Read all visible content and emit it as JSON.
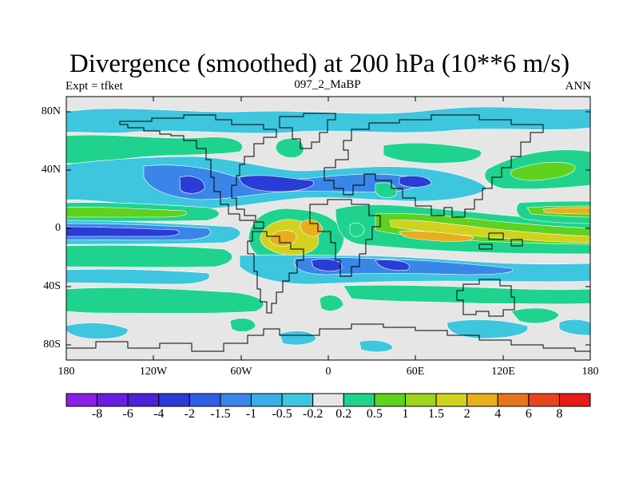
{
  "title": "Divergence (smoothed) at 200 hPa (10**6 m/s)",
  "subtitle_left": "Expt = tfket",
  "subtitle_center": "097_2_MaBP",
  "subtitle_right": "ANN",
  "lat_ticks": [
    "80N",
    "40N",
    "0",
    "40S",
    "80S"
  ],
  "lon_ticks": [
    "180",
    "120W",
    "60W",
    "0",
    "60E",
    "120E",
    "180"
  ],
  "colorbar": {
    "labels": [
      "-8",
      "-6",
      "-4",
      "-2",
      "-1.5",
      "-1",
      "-0.5",
      "-0.2",
      "0.2",
      "0.5",
      "1",
      "1.5",
      "2",
      "4",
      "6",
      "8"
    ],
    "colors": [
      "#8a1fe6",
      "#6a1ee0",
      "#4a22d8",
      "#2a3bd6",
      "#2e5ee6",
      "#3a86e8",
      "#3aaee6",
      "#3ec6de",
      "#e6e6e6",
      "#1fd38e",
      "#5ed21e",
      "#9cd41e",
      "#d2d21e",
      "#e8ae1e",
      "#e8741e",
      "#e8441e",
      "#e81a1a"
    ]
  },
  "map_colors": {
    "background": "#e6e6e6",
    "green": "#1fd38e",
    "lightgreen": "#5ed21e",
    "yellow": "#d2d21e",
    "orange": "#e8ae1e",
    "lightblue": "#3ec6de",
    "midblue": "#3a86e8",
    "deepblue": "#2a3bd6",
    "indigo": "#2432c8"
  }
}
